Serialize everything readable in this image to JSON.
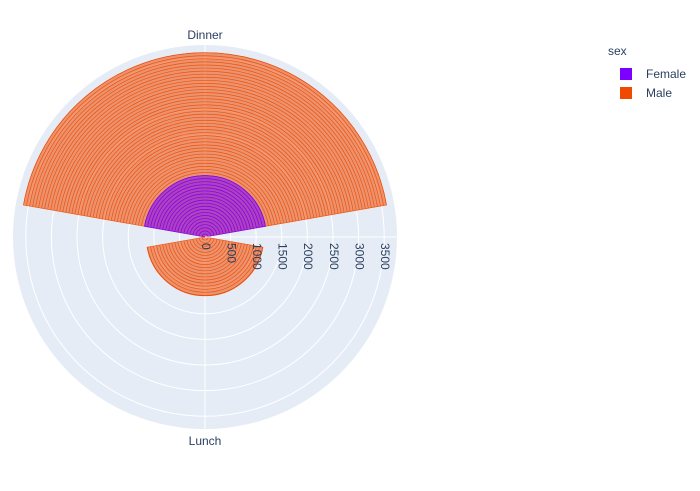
{
  "chart_data": {
    "type": "barpolar",
    "angular_categories": [
      "Dinner",
      "Lunch"
    ],
    "radial_ticks": [
      0,
      500,
      1000,
      1500,
      2000,
      2500,
      3000,
      3500
    ],
    "radial_range": [
      0,
      3750
    ],
    "angular_direction": "clockwise",
    "rotation_top_category": "Dinner",
    "legend_title": "sex",
    "legend_position": "top-right",
    "series": [
      {
        "name": "Female",
        "color": "#7b00ff",
        "values": {
          "Dinner": 1200,
          "Lunch": 0
        }
      },
      {
        "name": "Male",
        "color": "#f04a00",
        "values": {
          "Dinner": 3600,
          "Lunch": 1150
        }
      }
    ]
  }
}
